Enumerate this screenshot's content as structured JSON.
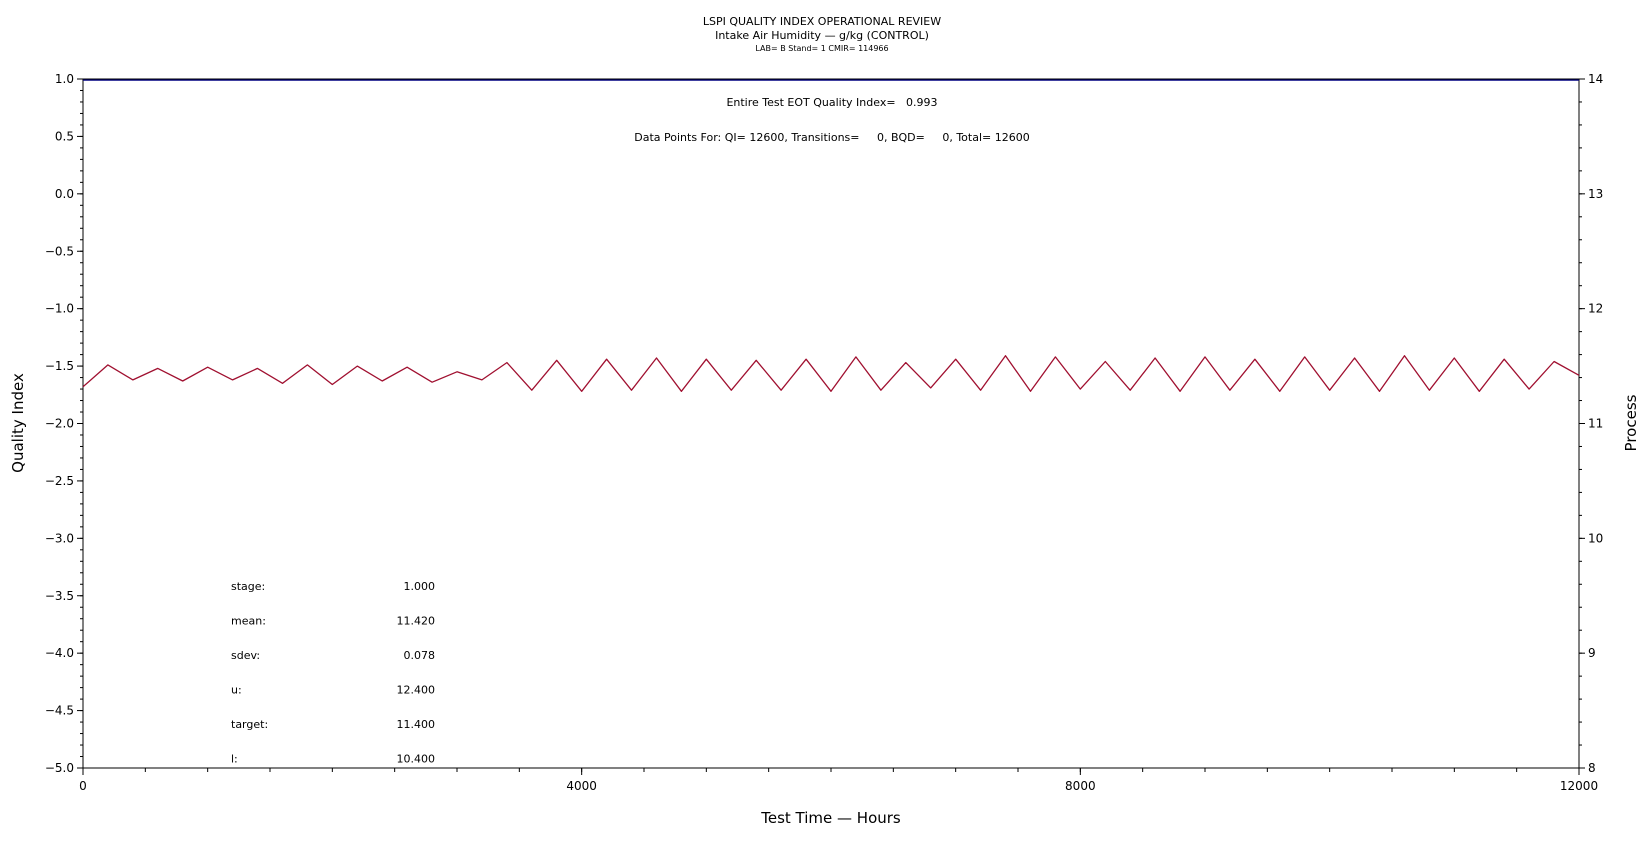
{
  "chart_data": {
    "type": "line",
    "title": "LSPI QUALITY INDEX OPERATIONAL REVIEW",
    "subtitle": "Intake Air Humidity — g/kg (CONTROL)",
    "subtitle2": "LAB= B Stand= 1 CMIR= 114966",
    "xlabel": "Test Time — Hours",
    "ylabel": "Quality Index",
    "y2label": "Process",
    "xlim": [
      0,
      12000
    ],
    "ylim": [
      -5.0,
      1.0
    ],
    "y2lim": [
      8,
      14
    ],
    "x_ticks": [
      "0",
      "4000",
      "8000",
      "12000"
    ],
    "y_ticks": [
      "1.0",
      "0.5",
      "0.0",
      "−0.5",
      "−1.0",
      "−1.5",
      "−2.0",
      "−2.5",
      "−3.0",
      "−3.5",
      "−4.0",
      "−4.5",
      "−5.0"
    ],
    "y2_ticks": [
      "14",
      "13",
      "12",
      "11",
      "10",
      "9",
      "8"
    ],
    "annotation_qi": "Entire Test EOT Quality Index=   0.993",
    "annotation_points": "Data Points For: QI= 12600, Transitions=     0, BQD=     0, Total= 12600",
    "series": [
      {
        "color": "#000080",
        "x": [
          0,
          12000
        ],
        "values": [
          0.99,
          0.99
        ]
      },
      {
        "color": "#a01030",
        "x": [
          0,
          200,
          400,
          600,
          800,
          1000,
          1200,
          1400,
          1600,
          1800,
          2000,
          2200,
          2400,
          2600,
          2800,
          3000,
          3200,
          3400,
          3600,
          3800,
          4000,
          4200,
          4400,
          4600,
          4800,
          5000,
          5200,
          5400,
          5600,
          5800,
          6000,
          6200,
          6400,
          6600,
          6800,
          7000,
          7200,
          7400,
          7600,
          7800,
          8000,
          8200,
          8400,
          8600,
          8800,
          9000,
          9200,
          9400,
          9600,
          9800,
          10000,
          10200,
          10400,
          10600,
          10800,
          11000,
          11200,
          11400,
          11600,
          11800,
          12000
        ],
        "values": [
          -1.68,
          -1.49,
          -1.62,
          -1.52,
          -1.63,
          -1.51,
          -1.62,
          -1.52,
          -1.65,
          -1.49,
          -1.66,
          -1.5,
          -1.63,
          -1.51,
          -1.64,
          -1.55,
          -1.62,
          -1.47,
          -1.71,
          -1.45,
          -1.72,
          -1.44,
          -1.71,
          -1.43,
          -1.72,
          -1.44,
          -1.71,
          -1.45,
          -1.71,
          -1.44,
          -1.72,
          -1.42,
          -1.71,
          -1.47,
          -1.69,
          -1.44,
          -1.71,
          -1.41,
          -1.72,
          -1.42,
          -1.7,
          -1.46,
          -1.71,
          -1.43,
          -1.72,
          -1.42,
          -1.71,
          -1.44,
          -1.72,
          -1.42,
          -1.71,
          -1.43,
          -1.72,
          -1.41,
          -1.71,
          -1.43,
          -1.72,
          -1.44,
          -1.7,
          -1.46,
          -1.58
        ]
      }
    ],
    "stats": [
      {
        "label": "stage:",
        "value": "1.000"
      },
      {
        "label": "mean:",
        "value": "11.420"
      },
      {
        "label": "sdev:",
        "value": "0.078"
      },
      {
        "label": "u:",
        "value": "12.400"
      },
      {
        "label": "target:",
        "value": "11.400"
      },
      {
        "label": "l:",
        "value": "10.400"
      }
    ]
  }
}
